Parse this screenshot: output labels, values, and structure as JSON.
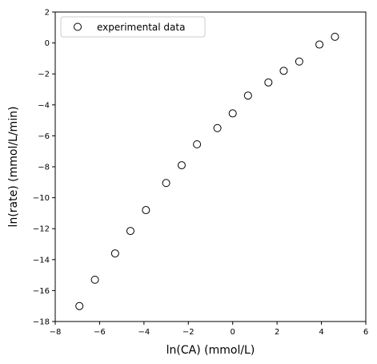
{
  "chart_data": {
    "type": "scatter",
    "xlabel": "ln(CA) (mmol/L)",
    "ylabel": "ln(rate) (mmol/L/min)",
    "xlim": [
      -8,
      6
    ],
    "ylim": [
      -18,
      2
    ],
    "xticks": [
      -8,
      -6,
      -4,
      -2,
      0,
      2,
      4,
      6
    ],
    "yticks": [
      -18,
      -16,
      -14,
      -12,
      -10,
      -8,
      -6,
      -4,
      -2,
      0,
      2
    ],
    "grid": false,
    "legend_position": "top-left",
    "series": [
      {
        "name": "experimental data",
        "marker": "open-circle",
        "color": "#000000",
        "x": [
          -6.91,
          -6.21,
          -5.3,
          -4.61,
          -3.91,
          -3.0,
          -2.3,
          -1.61,
          -0.69,
          0.0,
          0.69,
          1.61,
          2.3,
          3.0,
          3.91,
          4.61
        ],
        "y": [
          -17.0,
          -15.3,
          -13.6,
          -12.15,
          -10.8,
          -9.05,
          -7.9,
          -6.55,
          -5.5,
          -4.55,
          -3.4,
          -2.55,
          -1.8,
          -1.2,
          -0.1,
          0.4
        ]
      }
    ]
  }
}
